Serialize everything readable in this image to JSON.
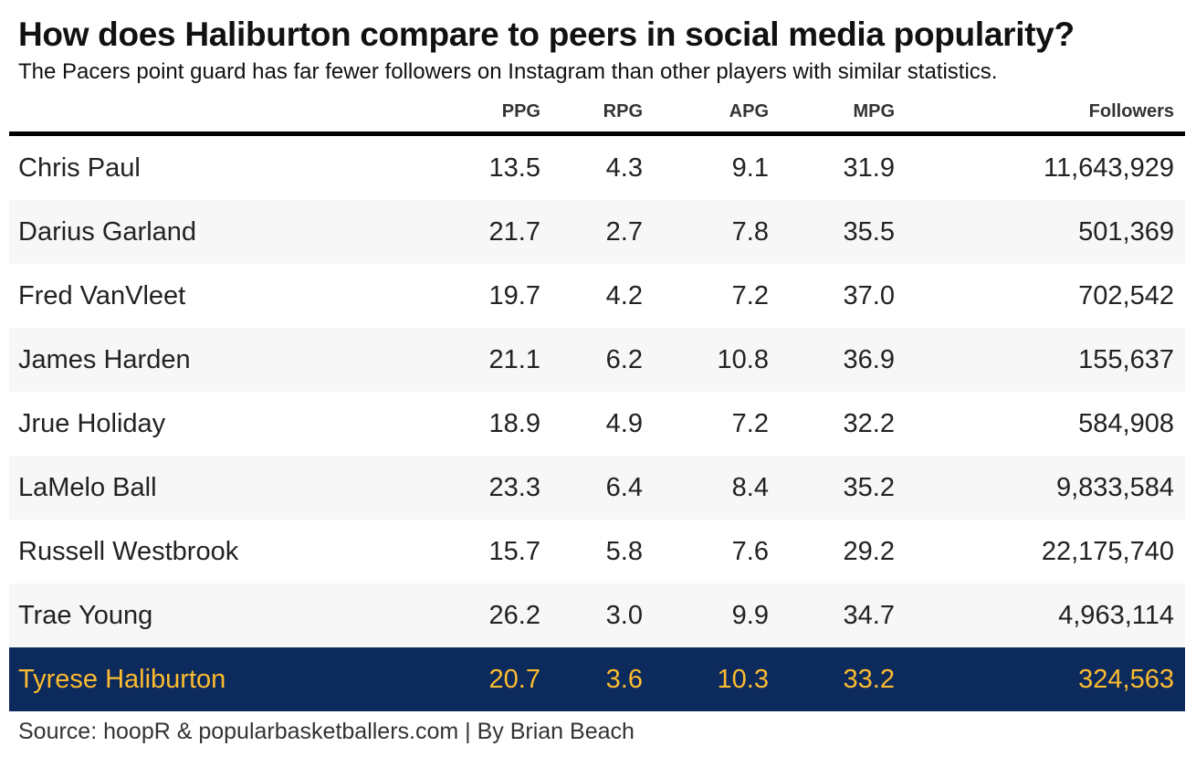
{
  "colors": {
    "highlight_background": "#0c2a5b",
    "highlight_text": "#fdbb30",
    "stripe_background": "#f7f7f7"
  },
  "chart_data": {
    "type": "table",
    "title": "How does Haliburton compare to peers in social media popularity?",
    "subtitle": "The Pacers point guard has far fewer followers on Instagram than other players with similar statistics.",
    "columns": [
      "",
      "PPG",
      "RPG",
      "APG",
      "MPG",
      "Followers"
    ],
    "rows": [
      {
        "player": "Chris Paul",
        "ppg": "13.5",
        "rpg": "4.3",
        "apg": "9.1",
        "mpg": "31.9",
        "followers": "11,643,929"
      },
      {
        "player": "Darius Garland",
        "ppg": "21.7",
        "rpg": "2.7",
        "apg": "7.8",
        "mpg": "35.5",
        "followers": "501,369"
      },
      {
        "player": "Fred VanVleet",
        "ppg": "19.7",
        "rpg": "4.2",
        "apg": "7.2",
        "mpg": "37.0",
        "followers": "702,542"
      },
      {
        "player": "James Harden",
        "ppg": "21.1",
        "rpg": "6.2",
        "apg": "10.8",
        "mpg": "36.9",
        "followers": "155,637"
      },
      {
        "player": "Jrue Holiday",
        "ppg": "18.9",
        "rpg": "4.9",
        "apg": "7.2",
        "mpg": "32.2",
        "followers": "584,908"
      },
      {
        "player": "LaMelo Ball",
        "ppg": "23.3",
        "rpg": "6.4",
        "apg": "8.4",
        "mpg": "35.2",
        "followers": "9,833,584"
      },
      {
        "player": "Russell Westbrook",
        "ppg": "15.7",
        "rpg": "5.8",
        "apg": "7.6",
        "mpg": "29.2",
        "followers": "22,175,740"
      },
      {
        "player": "Trae Young",
        "ppg": "26.2",
        "rpg": "3.0",
        "apg": "9.9",
        "mpg": "34.7",
        "followers": "4,963,114"
      },
      {
        "player": "Tyrese Haliburton",
        "ppg": "20.7",
        "rpg": "3.6",
        "apg": "10.3",
        "mpg": "33.2",
        "followers": "324,563",
        "highlight": true
      }
    ],
    "source": "Source: hoopR & popularbasketballers.com | By Brian Beach"
  }
}
